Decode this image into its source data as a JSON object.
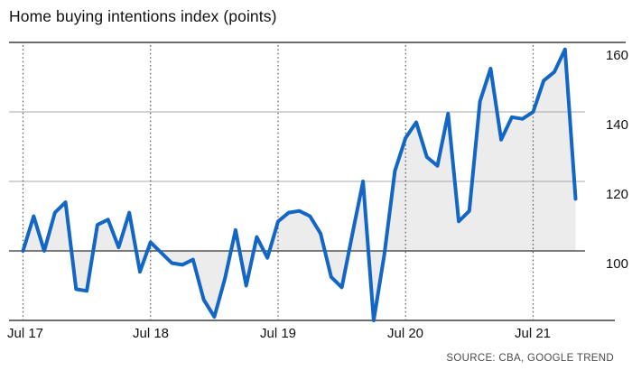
{
  "header": {
    "title": "Home buying intentions index (points)"
  },
  "footer": {
    "source": "SOURCE: CBA, GOOGLE TREND"
  },
  "colors": {
    "line": "#1266c5",
    "fill": "#ececec",
    "grid_light": "#a9a9a9",
    "grid_dark": "#3d3d3d",
    "baseline_grid": "#333333",
    "dotted": "#5a5a5a",
    "text": "#111111",
    "source_text": "#4a4a4a"
  },
  "chart_data": {
    "type": "area",
    "title": "Home buying intentions index (points)",
    "ylabel": "points",
    "xlabel": "",
    "ylim": [
      80,
      160
    ],
    "baseline": 100,
    "grid": "horizontal-solid, vertical-dotted-at-july",
    "legend_position": "none",
    "y_ticks": [
      100,
      120,
      140,
      160
    ],
    "x_tick_labels": [
      "Jul 17",
      "Jul 18",
      "Jul 19",
      "Jul 20",
      "Jul 21"
    ],
    "x_tick_indices": [
      0,
      12,
      24,
      36,
      48
    ],
    "series": [
      {
        "name": "Home buying intentions index",
        "frequency": "monthly",
        "start": "Jul 2017",
        "end": "Nov 2021",
        "values": [
          100,
          110,
          100,
          111,
          114,
          89,
          88.5,
          107.5,
          109,
          101,
          111,
          94,
          102.5,
          99.5,
          96.5,
          96,
          97.5,
          86,
          81,
          92,
          106,
          90,
          104,
          98,
          108.5,
          111,
          111.5,
          110,
          105,
          92.5,
          89.5,
          105,
          120,
          80,
          99,
          123,
          132.5,
          137,
          127,
          124.5,
          139.5,
          108.5,
          111.5,
          143,
          152.5,
          132,
          138.5,
          138,
          140,
          149,
          151.5,
          158,
          115
        ]
      }
    ]
  }
}
